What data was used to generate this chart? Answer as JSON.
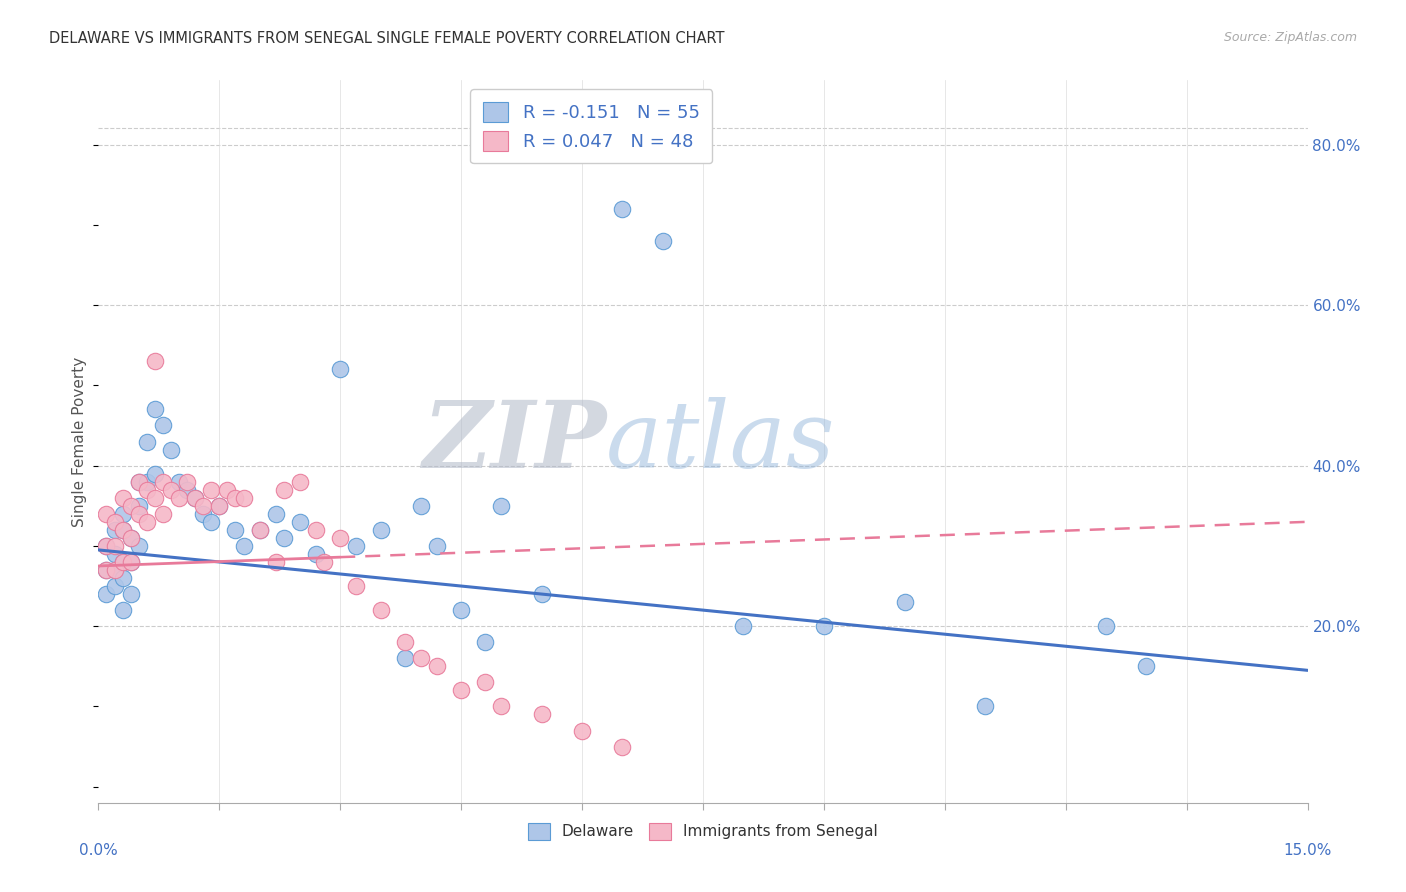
{
  "title": "DELAWARE VS IMMIGRANTS FROM SENEGAL SINGLE FEMALE POVERTY CORRELATION CHART",
  "source": "Source: ZipAtlas.com",
  "ylabel": "Single Female Poverty",
  "right_yticks": [
    "20.0%",
    "40.0%",
    "60.0%",
    "80.0%"
  ],
  "right_ytick_vals": [
    0.2,
    0.4,
    0.6,
    0.8
  ],
  "watermark_zip": "ZIP",
  "watermark_atlas": "atlas",
  "delaware_color": "#aec6e8",
  "senegal_color": "#f5b8c8",
  "delaware_edge_color": "#5b9bd5",
  "senegal_edge_color": "#e87a9a",
  "delaware_line_color": "#4472c4",
  "senegal_line_color": "#e87a9a",
  "background_color": "#ffffff",
  "grid_color": "#cccccc",
  "xlim": [
    0.0,
    0.15
  ],
  "ylim": [
    -0.02,
    0.88
  ],
  "del_trend_x0": 0.0,
  "del_trend_y0": 0.295,
  "del_trend_x1": 0.15,
  "del_trend_y1": 0.145,
  "sen_trend_x0": 0.0,
  "sen_trend_y0": 0.275,
  "sen_trend_x1": 0.15,
  "sen_trend_y1": 0.33,
  "delaware_x": [
    0.001,
    0.001,
    0.001,
    0.002,
    0.002,
    0.002,
    0.002,
    0.003,
    0.003,
    0.003,
    0.003,
    0.003,
    0.004,
    0.004,
    0.004,
    0.005,
    0.005,
    0.005,
    0.006,
    0.006,
    0.007,
    0.007,
    0.008,
    0.009,
    0.01,
    0.011,
    0.012,
    0.013,
    0.014,
    0.015,
    0.017,
    0.018,
    0.02,
    0.022,
    0.023,
    0.025,
    0.027,
    0.03,
    0.032,
    0.035,
    0.038,
    0.04,
    0.042,
    0.045,
    0.048,
    0.05,
    0.055,
    0.065,
    0.07,
    0.08,
    0.09,
    0.1,
    0.11,
    0.125,
    0.13
  ],
  "delaware_y": [
    0.3,
    0.27,
    0.24,
    0.32,
    0.29,
    0.27,
    0.25,
    0.34,
    0.32,
    0.28,
    0.26,
    0.22,
    0.31,
    0.28,
    0.24,
    0.38,
    0.35,
    0.3,
    0.43,
    0.38,
    0.47,
    0.39,
    0.45,
    0.42,
    0.38,
    0.37,
    0.36,
    0.34,
    0.33,
    0.35,
    0.32,
    0.3,
    0.32,
    0.34,
    0.31,
    0.33,
    0.29,
    0.52,
    0.3,
    0.32,
    0.16,
    0.35,
    0.3,
    0.22,
    0.18,
    0.35,
    0.24,
    0.72,
    0.68,
    0.2,
    0.2,
    0.23,
    0.1,
    0.2,
    0.15
  ],
  "senegal_x": [
    0.001,
    0.001,
    0.001,
    0.002,
    0.002,
    0.002,
    0.003,
    0.003,
    0.003,
    0.004,
    0.004,
    0.004,
    0.005,
    0.005,
    0.006,
    0.006,
    0.007,
    0.007,
    0.008,
    0.008,
    0.009,
    0.01,
    0.011,
    0.012,
    0.013,
    0.014,
    0.015,
    0.016,
    0.017,
    0.018,
    0.02,
    0.022,
    0.023,
    0.025,
    0.027,
    0.028,
    0.03,
    0.032,
    0.035,
    0.038,
    0.04,
    0.042,
    0.045,
    0.048,
    0.05,
    0.055,
    0.06,
    0.065
  ],
  "senegal_y": [
    0.34,
    0.3,
    0.27,
    0.33,
    0.3,
    0.27,
    0.36,
    0.32,
    0.28,
    0.35,
    0.31,
    0.28,
    0.38,
    0.34,
    0.37,
    0.33,
    0.53,
    0.36,
    0.38,
    0.34,
    0.37,
    0.36,
    0.38,
    0.36,
    0.35,
    0.37,
    0.35,
    0.37,
    0.36,
    0.36,
    0.32,
    0.28,
    0.37,
    0.38,
    0.32,
    0.28,
    0.31,
    0.25,
    0.22,
    0.18,
    0.16,
    0.15,
    0.12,
    0.13,
    0.1,
    0.09,
    0.07,
    0.05
  ]
}
